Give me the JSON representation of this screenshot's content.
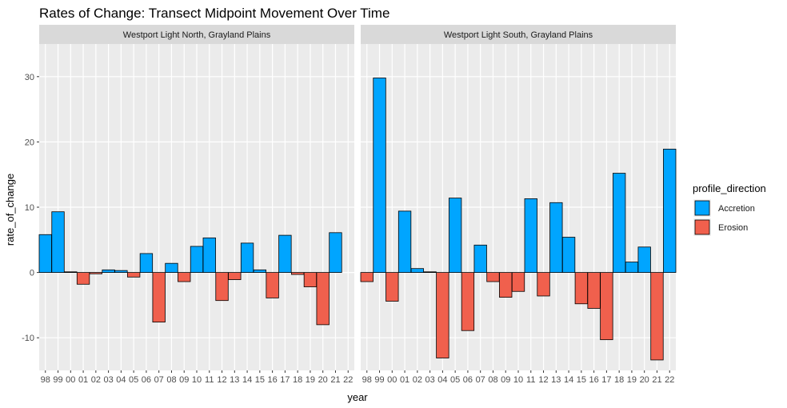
{
  "chart_data": {
    "type": "bar",
    "title": "Rates of Change: Transect Midpoint Movement Over Time",
    "xlabel": "year",
    "ylabel": "rate_of_change",
    "ylim": [
      -15,
      35
    ],
    "yticks": [
      -10,
      0,
      10,
      20,
      30
    ],
    "categories": [
      "98",
      "99",
      "00",
      "01",
      "02",
      "03",
      "04",
      "05",
      "06",
      "07",
      "08",
      "09",
      "10",
      "11",
      "12",
      "13",
      "14",
      "15",
      "16",
      "17",
      "18",
      "19",
      "20",
      "21",
      "22"
    ],
    "grid": true,
    "legend": {
      "title": "profile_direction",
      "placement": "right",
      "entries": [
        {
          "label": "Accretion",
          "color": "#00a5ff"
        },
        {
          "label": "Erosion",
          "color": "#f0604d"
        }
      ]
    },
    "panels": [
      {
        "strip": "Westport Light North, Grayland Plains",
        "values": [
          5.8,
          9.3,
          0.1,
          -1.8,
          -0.2,
          0.4,
          0.3,
          -0.7,
          2.9,
          -7.6,
          1.4,
          -1.4,
          4.0,
          5.3,
          -4.3,
          -1.1,
          4.5,
          0.4,
          -3.9,
          5.7,
          -0.3,
          -2.2,
          -8.0,
          6.1,
          null
        ]
      },
      {
        "strip": "Westport Light South, Grayland Plains",
        "values": [
          -1.4,
          29.8,
          -4.4,
          9.4,
          0.6,
          0.1,
          -13.1,
          11.4,
          -8.9,
          4.2,
          -1.4,
          -3.8,
          -2.9,
          11.3,
          -3.6,
          10.7,
          5.4,
          -4.8,
          -5.5,
          -10.3,
          15.2,
          1.6,
          3.9,
          -13.4,
          18.9
        ]
      }
    ]
  }
}
